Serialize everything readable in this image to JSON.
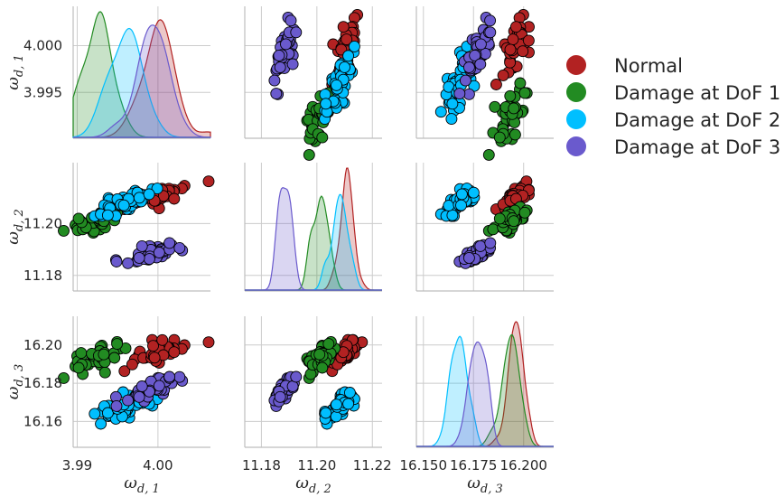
{
  "chart_data": {
    "type": "scatter",
    "kind": "pairplot",
    "variables": [
      {
        "name": "omega_d1",
        "base": "ω",
        "sub": "d, 1",
        "range": [
          3.9895,
          4.0065
        ],
        "ticks": [
          3.99,
          4.0
        ],
        "tick_labels": [
          "3.99",
          "4.00"
        ],
        "diag_ticks": [
          3.995,
          4.0
        ],
        "diag_tick_labels": [
          "3.995",
          "4.000"
        ]
      },
      {
        "name": "omega_d2",
        "base": "ω",
        "sub": "d, 2",
        "range": [
          11.174,
          11.2235
        ],
        "ticks": [
          11.18,
          11.2,
          11.22
        ],
        "tick_labels": [
          "11.18",
          "11.20",
          "11.22"
        ],
        "y_ticks": [
          11.18,
          11.2
        ],
        "y_tick_labels": [
          "11.18",
          "11.20"
        ]
      },
      {
        "name": "omega_d3",
        "base": "ω",
        "sub": "d, 3",
        "range": [
          16.1465,
          16.215
        ],
        "ticks": [
          16.15,
          16.175,
          16.2
        ],
        "tick_labels": [
          "16.150",
          "16.175",
          "16.200"
        ],
        "y_ticks": [
          16.16,
          16.18,
          16.2
        ],
        "y_tick_labels": [
          "16.16",
          "16.18",
          "16.20"
        ]
      }
    ],
    "diag_y_range": [
      3.9901,
      4.0042
    ],
    "series": [
      {
        "name": "Normal",
        "color": "#b22222",
        "mean": [
          4.0005,
          11.211,
          16.197
        ],
        "sd": [
          0.0019,
          0.0022,
          0.0035
        ],
        "corr": 0.8,
        "n": 40,
        "seed": 11
      },
      {
        "name": "Damage at DoF 1",
        "color": "#228b22",
        "mean": [
          3.9925,
          11.201,
          16.193
        ],
        "sd": [
          0.0018,
          0.0022,
          0.0037
        ],
        "corr": 0.82,
        "n": 40,
        "seed": 23
      },
      {
        "name": "Damage at DoF 2",
        "color": "#00bfff",
        "mean": [
          3.9962,
          11.2085,
          16.168
        ],
        "sd": [
          0.0019,
          0.0024,
          0.0034
        ],
        "corr": 0.83,
        "n": 40,
        "seed": 37
      },
      {
        "name": "Damage at DoF 3",
        "color": "#6a5acd",
        "mean": [
          3.9995,
          11.1885,
          16.1775
        ],
        "sd": [
          0.0019,
          0.0022,
          0.0035
        ],
        "corr": 0.8,
        "n": 40,
        "seed": 53
      }
    ],
    "legend": {
      "position": "right"
    },
    "grid": true
  }
}
